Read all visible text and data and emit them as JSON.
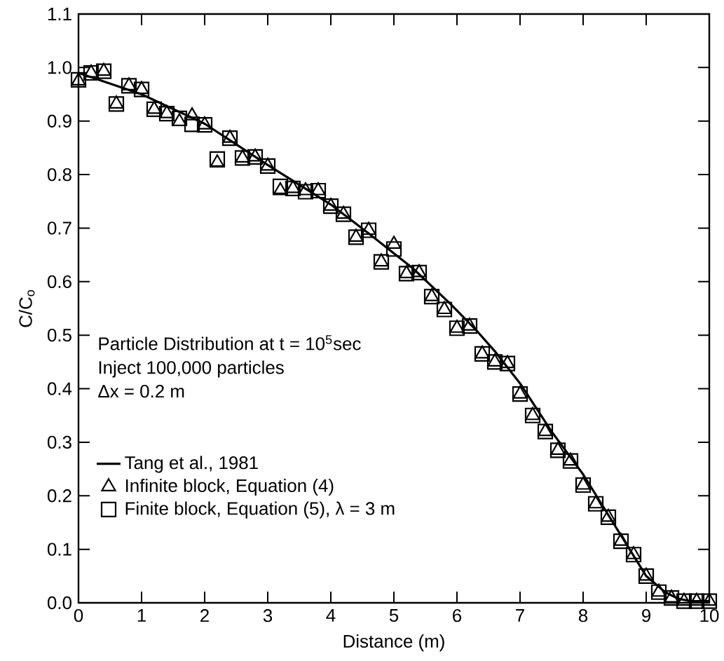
{
  "chart_data": {
    "type": "scatter",
    "xlabel": "Distance (m)",
    "ylabel": "C/C$_{o}$",
    "xlim": [
      0,
      10
    ],
    "ylim": [
      0,
      1.1
    ],
    "xticks": [
      0,
      1,
      2,
      3,
      4,
      5,
      6,
      7,
      8,
      9,
      10
    ],
    "yticks": [
      {
        "value": 0,
        "label": "0.0"
      },
      {
        "value": 0.1,
        "label": "0.1"
      },
      {
        "value": 0.2,
        "label": "0.2"
      },
      {
        "value": 0.3,
        "label": "0.3"
      },
      {
        "value": 0.4,
        "label": "0.4"
      },
      {
        "value": 0.5,
        "label": "0.5"
      },
      {
        "value": 0.6,
        "label": "0.6"
      },
      {
        "value": 0.7,
        "label": "0.7"
      },
      {
        "value": 0.8,
        "label": "0.8"
      },
      {
        "value": 0.9,
        "label": "0.9"
      },
      {
        "value": 1,
        "label": "1.0"
      },
      {
        "value": 1.1,
        "label": "1.1"
      }
    ],
    "annotations": [
      "Particle Distribution at t = 10$^{5}$sec",
      "Inject 100,000 particles",
      "Δx = 0.2 m"
    ],
    "legend": "bottom left",
    "series": [
      {
        "name": "Tang et al., 1981",
        "type": "line",
        "marker": "none",
        "color": "#000000",
        "x": [
          0,
          1,
          2,
          3,
          4,
          4.6,
          5.3,
          5.9,
          6.3,
          6.6,
          7,
          7.5,
          8,
          8.5,
          9,
          9.3,
          9.5,
          9.7,
          10
        ],
        "values": [
          0.99,
          0.95,
          0.895,
          0.818,
          0.744,
          0.69,
          0.625,
          0.558,
          0.51,
          0.47,
          0.41,
          0.32,
          0.24,
          0.145,
          0.05,
          0.02,
          0.008,
          0.003,
          0.003
        ]
      },
      {
        "name": "Infinite block, Equation (4)",
        "type": "scatter",
        "marker": "triangle",
        "color": "#000000",
        "x": [
          0,
          0.2,
          0.4,
          0.6,
          0.8,
          1,
          1.2,
          1.4,
          1.6,
          1.8,
          2,
          2.2,
          2.4,
          2.6,
          2.8,
          3,
          3.2,
          3.4,
          3.6,
          3.8,
          4,
          4.2,
          4.4,
          4.6,
          4.8,
          5,
          5.2,
          5.4,
          5.6,
          5.8,
          6,
          6.2,
          6.4,
          6.6,
          6.8,
          7,
          7.2,
          7.4,
          7.6,
          7.8,
          8,
          8.2,
          8.4,
          8.6,
          8.8,
          9,
          9.2,
          9.4,
          9.6,
          9.8,
          10
        ],
        "values": [
          0.975,
          0.99,
          0.993,
          0.932,
          0.966,
          0.959,
          0.922,
          0.914,
          0.899,
          0.91,
          0.893,
          0.822,
          0.868,
          0.831,
          0.833,
          0.816,
          0.77,
          0.774,
          0.77,
          0.77,
          0.741,
          0.726,
          0.683,
          0.696,
          0.637,
          0.67,
          0.615,
          0.617,
          0.572,
          0.548,
          0.513,
          0.517,
          0.465,
          0.45,
          0.447,
          0.39,
          0.35,
          0.32,
          0.285,
          0.265,
          0.22,
          0.185,
          0.16,
          0.115,
          0.09,
          0.05,
          0.02,
          0.009,
          0.003,
          0.003,
          0.003
        ]
      },
      {
        "name": "Finite block, Equation (5), λ = 3 m",
        "type": "scatter",
        "marker": "square",
        "color": "#000000",
        "x": [
          0,
          0.2,
          0.4,
          0.6,
          0.8,
          1,
          1.2,
          1.4,
          1.6,
          1.8,
          2,
          2.2,
          2.4,
          2.6,
          2.8,
          3,
          3.2,
          3.4,
          3.6,
          3.8,
          4,
          4.2,
          4.4,
          4.6,
          4.8,
          5,
          5.2,
          5.4,
          5.6,
          5.8,
          6,
          6.2,
          6.4,
          6.6,
          6.8,
          7,
          7.2,
          7.4,
          7.6,
          7.8,
          8,
          8.2,
          8.4,
          8.6,
          8.8,
          9,
          9.2,
          9.4,
          9.6,
          9.8,
          10
        ],
        "values": [
          0.977,
          0.99,
          0.993,
          0.932,
          0.966,
          0.959,
          0.922,
          0.914,
          0.905,
          0.894,
          0.893,
          0.829,
          0.868,
          0.831,
          0.833,
          0.816,
          0.778,
          0.774,
          0.768,
          0.77,
          0.741,
          0.726,
          0.683,
          0.696,
          0.637,
          0.661,
          0.615,
          0.617,
          0.572,
          0.548,
          0.513,
          0.517,
          0.465,
          0.45,
          0.447,
          0.39,
          0.35,
          0.32,
          0.285,
          0.265,
          0.22,
          0.185,
          0.16,
          0.115,
          0.09,
          0.05,
          0.02,
          0.009,
          0.003,
          0.003,
          0.003
        ]
      }
    ]
  }
}
